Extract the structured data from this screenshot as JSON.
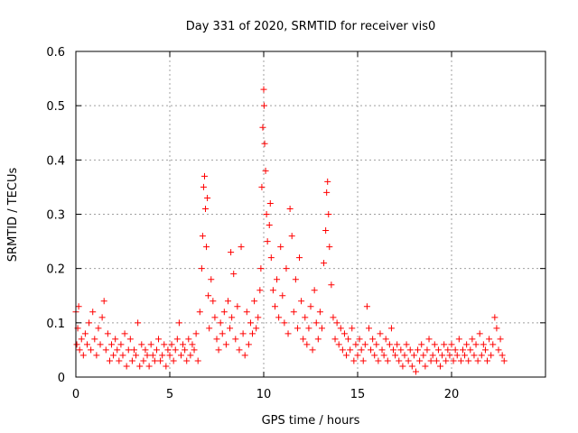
{
  "chart_data": {
    "type": "scatter",
    "title": "Day 331 of 2020, SRMTID for receiver vis0",
    "xlabel": "GPS time / hours",
    "ylabel": "SRMTID / TECUs",
    "xlim": [
      0,
      25
    ],
    "ylim": [
      0,
      0.6
    ],
    "x_ticks": [
      0,
      5,
      10,
      15,
      20
    ],
    "y_ticks": [
      0,
      0.1,
      0.2,
      0.3,
      0.4,
      0.5,
      0.6
    ],
    "x_tick_labels": [
      "0",
      "5",
      "10",
      "15",
      "20"
    ],
    "y_tick_labels": [
      "0",
      "0.1",
      "0.2",
      "0.3",
      "0.4",
      "0.5",
      "0.6"
    ],
    "grid": true,
    "marker": "plus",
    "series": [
      {
        "name": "SRMTID",
        "color": "#ff0000",
        "points": [
          [
            0.0,
            0.12
          ],
          [
            0.05,
            0.06
          ],
          [
            0.1,
            0.09
          ],
          [
            0.15,
            0.13
          ],
          [
            0.2,
            0.05
          ],
          [
            0.3,
            0.07
          ],
          [
            0.4,
            0.04
          ],
          [
            0.5,
            0.08
          ],
          [
            0.6,
            0.06
          ],
          [
            0.7,
            0.1
          ],
          [
            0.8,
            0.05
          ],
          [
            0.9,
            0.12
          ],
          [
            1.0,
            0.07
          ],
          [
            1.1,
            0.04
          ],
          [
            1.2,
            0.09
          ],
          [
            1.3,
            0.06
          ],
          [
            1.4,
            0.11
          ],
          [
            1.5,
            0.14
          ],
          [
            1.6,
            0.05
          ],
          [
            1.7,
            0.08
          ],
          [
            1.8,
            0.03
          ],
          [
            1.9,
            0.06
          ],
          [
            2.0,
            0.04
          ],
          [
            2.1,
            0.07
          ],
          [
            2.2,
            0.05
          ],
          [
            2.3,
            0.03
          ],
          [
            2.4,
            0.06
          ],
          [
            2.5,
            0.04
          ],
          [
            2.6,
            0.08
          ],
          [
            2.7,
            0.02
          ],
          [
            2.8,
            0.05
          ],
          [
            2.9,
            0.07
          ],
          [
            3.0,
            0.03
          ],
          [
            3.1,
            0.05
          ],
          [
            3.2,
            0.04
          ],
          [
            3.3,
            0.1
          ],
          [
            3.4,
            0.02
          ],
          [
            3.5,
            0.06
          ],
          [
            3.6,
            0.03
          ],
          [
            3.7,
            0.05
          ],
          [
            3.8,
            0.04
          ],
          [
            3.9,
            0.02
          ],
          [
            4.0,
            0.06
          ],
          [
            4.1,
            0.04
          ],
          [
            4.2,
            0.03
          ],
          [
            4.3,
            0.05
          ],
          [
            4.4,
            0.07
          ],
          [
            4.5,
            0.03
          ],
          [
            4.6,
            0.04
          ],
          [
            4.7,
            0.06
          ],
          [
            4.8,
            0.02
          ],
          [
            4.9,
            0.05
          ],
          [
            5.0,
            0.04
          ],
          [
            5.1,
            0.06
          ],
          [
            5.2,
            0.03
          ],
          [
            5.3,
            0.05
          ],
          [
            5.4,
            0.07
          ],
          [
            5.5,
            0.1
          ],
          [
            5.6,
            0.04
          ],
          [
            5.7,
            0.06
          ],
          [
            5.8,
            0.05
          ],
          [
            5.9,
            0.03
          ],
          [
            6.0,
            0.07
          ],
          [
            6.1,
            0.04
          ],
          [
            6.2,
            0.06
          ],
          [
            6.3,
            0.05
          ],
          [
            6.4,
            0.08
          ],
          [
            6.5,
            0.03
          ],
          [
            6.6,
            0.12
          ],
          [
            6.7,
            0.2
          ],
          [
            6.75,
            0.26
          ],
          [
            6.8,
            0.35
          ],
          [
            6.85,
            0.37
          ],
          [
            6.9,
            0.31
          ],
          [
            6.95,
            0.24
          ],
          [
            7.0,
            0.33
          ],
          [
            7.05,
            0.15
          ],
          [
            7.1,
            0.09
          ],
          [
            7.2,
            0.18
          ],
          [
            7.3,
            0.14
          ],
          [
            7.4,
            0.11
          ],
          [
            7.5,
            0.07
          ],
          [
            7.6,
            0.05
          ],
          [
            7.7,
            0.1
          ],
          [
            7.8,
            0.08
          ],
          [
            7.9,
            0.12
          ],
          [
            8.0,
            0.06
          ],
          [
            8.1,
            0.14
          ],
          [
            8.2,
            0.09
          ],
          [
            8.25,
            0.23
          ],
          [
            8.3,
            0.11
          ],
          [
            8.4,
            0.19
          ],
          [
            8.5,
            0.07
          ],
          [
            8.6,
            0.13
          ],
          [
            8.7,
            0.05
          ],
          [
            8.8,
            0.24
          ],
          [
            8.9,
            0.08
          ],
          [
            9.0,
            0.04
          ],
          [
            9.1,
            0.12
          ],
          [
            9.2,
            0.06
          ],
          [
            9.3,
            0.1
          ],
          [
            9.4,
            0.08
          ],
          [
            9.5,
            0.14
          ],
          [
            9.6,
            0.09
          ],
          [
            9.7,
            0.11
          ],
          [
            9.8,
            0.16
          ],
          [
            9.85,
            0.2
          ],
          [
            9.9,
            0.35
          ],
          [
            9.95,
            0.46
          ],
          [
            10.0,
            0.53
          ],
          [
            10.02,
            0.5
          ],
          [
            10.05,
            0.43
          ],
          [
            10.1,
            0.38
          ],
          [
            10.15,
            0.3
          ],
          [
            10.2,
            0.25
          ],
          [
            10.3,
            0.28
          ],
          [
            10.35,
            0.32
          ],
          [
            10.4,
            0.22
          ],
          [
            10.5,
            0.16
          ],
          [
            10.6,
            0.13
          ],
          [
            10.7,
            0.18
          ],
          [
            10.8,
            0.11
          ],
          [
            10.9,
            0.24
          ],
          [
            11.0,
            0.15
          ],
          [
            11.1,
            0.1
          ],
          [
            11.2,
            0.2
          ],
          [
            11.3,
            0.08
          ],
          [
            11.4,
            0.31
          ],
          [
            11.5,
            0.26
          ],
          [
            11.6,
            0.12
          ],
          [
            11.7,
            0.18
          ],
          [
            11.8,
            0.09
          ],
          [
            11.9,
            0.22
          ],
          [
            12.0,
            0.14
          ],
          [
            12.1,
            0.07
          ],
          [
            12.2,
            0.11
          ],
          [
            12.3,
            0.06
          ],
          [
            12.4,
            0.09
          ],
          [
            12.5,
            0.13
          ],
          [
            12.6,
            0.05
          ],
          [
            12.7,
            0.16
          ],
          [
            12.8,
            0.1
          ],
          [
            12.9,
            0.07
          ],
          [
            13.0,
            0.12
          ],
          [
            13.1,
            0.09
          ],
          [
            13.2,
            0.21
          ],
          [
            13.3,
            0.27
          ],
          [
            13.35,
            0.34
          ],
          [
            13.4,
            0.36
          ],
          [
            13.45,
            0.3
          ],
          [
            13.5,
            0.24
          ],
          [
            13.6,
            0.17
          ],
          [
            13.7,
            0.11
          ],
          [
            13.8,
            0.07
          ],
          [
            13.9,
            0.1
          ],
          [
            14.0,
            0.06
          ],
          [
            14.1,
            0.09
          ],
          [
            14.2,
            0.05
          ],
          [
            14.3,
            0.08
          ],
          [
            14.4,
            0.04
          ],
          [
            14.5,
            0.07
          ],
          [
            14.6,
            0.05
          ],
          [
            14.7,
            0.09
          ],
          [
            14.8,
            0.03
          ],
          [
            14.9,
            0.06
          ],
          [
            15.0,
            0.04
          ],
          [
            15.1,
            0.07
          ],
          [
            15.2,
            0.05
          ],
          [
            15.3,
            0.03
          ],
          [
            15.4,
            0.06
          ],
          [
            15.5,
            0.13
          ],
          [
            15.6,
            0.09
          ],
          [
            15.7,
            0.05
          ],
          [
            15.8,
            0.07
          ],
          [
            15.9,
            0.04
          ],
          [
            16.0,
            0.06
          ],
          [
            16.1,
            0.03
          ],
          [
            16.2,
            0.08
          ],
          [
            16.3,
            0.05
          ],
          [
            16.4,
            0.04
          ],
          [
            16.5,
            0.07
          ],
          [
            16.6,
            0.03
          ],
          [
            16.7,
            0.06
          ],
          [
            16.8,
            0.09
          ],
          [
            16.9,
            0.05
          ],
          [
            17.0,
            0.04
          ],
          [
            17.1,
            0.06
          ],
          [
            17.2,
            0.03
          ],
          [
            17.3,
            0.05
          ],
          [
            17.4,
            0.02
          ],
          [
            17.5,
            0.04
          ],
          [
            17.6,
            0.06
          ],
          [
            17.7,
            0.03
          ],
          [
            17.8,
            0.05
          ],
          [
            17.9,
            0.02
          ],
          [
            18.0,
            0.04
          ],
          [
            18.1,
            0.01
          ],
          [
            18.2,
            0.05
          ],
          [
            18.3,
            0.03
          ],
          [
            18.4,
            0.06
          ],
          [
            18.5,
            0.04
          ],
          [
            18.6,
            0.02
          ],
          [
            18.7,
            0.05
          ],
          [
            18.8,
            0.07
          ],
          [
            18.9,
            0.03
          ],
          [
            19.0,
            0.04
          ],
          [
            19.1,
            0.06
          ],
          [
            19.2,
            0.03
          ],
          [
            19.3,
            0.05
          ],
          [
            19.4,
            0.02
          ],
          [
            19.5,
            0.04
          ],
          [
            19.6,
            0.06
          ],
          [
            19.7,
            0.03
          ],
          [
            19.8,
            0.05
          ],
          [
            19.9,
            0.04
          ],
          [
            20.0,
            0.06
          ],
          [
            20.1,
            0.03
          ],
          [
            20.2,
            0.05
          ],
          [
            20.3,
            0.04
          ],
          [
            20.4,
            0.07
          ],
          [
            20.5,
            0.03
          ],
          [
            20.6,
            0.05
          ],
          [
            20.7,
            0.04
          ],
          [
            20.8,
            0.06
          ],
          [
            20.9,
            0.03
          ],
          [
            21.0,
            0.05
          ],
          [
            21.1,
            0.07
          ],
          [
            21.2,
            0.04
          ],
          [
            21.3,
            0.06
          ],
          [
            21.4,
            0.03
          ],
          [
            21.5,
            0.08
          ],
          [
            21.6,
            0.04
          ],
          [
            21.7,
            0.06
          ],
          [
            21.8,
            0.05
          ],
          [
            21.9,
            0.03
          ],
          [
            22.0,
            0.07
          ],
          [
            22.1,
            0.04
          ],
          [
            22.2,
            0.06
          ],
          [
            22.3,
            0.11
          ],
          [
            22.4,
            0.09
          ],
          [
            22.5,
            0.05
          ],
          [
            22.6,
            0.07
          ],
          [
            22.7,
            0.04
          ],
          [
            22.8,
            0.03
          ]
        ]
      }
    ]
  }
}
